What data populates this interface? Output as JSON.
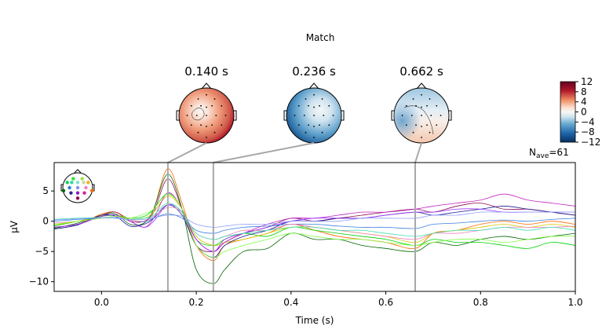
{
  "title": "Match",
  "n_ave_label": "N",
  "n_ave_sub": "ave",
  "n_ave_value": "=61",
  "topomaps": [
    {
      "time": 0.14,
      "label": "0.140 s",
      "pattern": "positive-broad"
    },
    {
      "time": 0.236,
      "label": "0.236 s",
      "pattern": "negative-broad"
    },
    {
      "time": 0.662,
      "label": "0.662 s",
      "pattern": "weak-mixed"
    }
  ],
  "colorbar": {
    "cmap": "RdBu_r",
    "range": [
      -12,
      12
    ],
    "ticks": [
      "12",
      "8",
      "4",
      "0",
      "−4",
      "−8",
      "−12"
    ],
    "tick_values": [
      12,
      8,
      4,
      0,
      -4,
      -8,
      -12
    ],
    "colors": {
      "max": "#67001f",
      "mid": "#f7f7f7",
      "min": "#053061"
    }
  },
  "chart_data": {
    "type": "line",
    "xlabel": "Time (s)",
    "ylabel": "µV",
    "xlim": [
      -0.1,
      1.0
    ],
    "ylim": [
      -11.6,
      9.7
    ],
    "xticks": [
      0.0,
      0.2,
      0.4,
      0.6,
      0.8,
      1.0
    ],
    "xtick_labels": [
      "0.0",
      "0.2",
      "0.4",
      "0.6",
      "0.8",
      "1.0"
    ],
    "yticks": [
      5,
      0,
      -5,
      -10
    ],
    "ytick_labels": [
      "5",
      "0",
      "−5",
      "−10"
    ],
    "grid": false,
    "legend": "sensor-map top-left",
    "highlight_times": [
      0.14,
      0.236,
      0.662
    ],
    "x": [
      -0.1,
      -0.05,
      0,
      0.03,
      0.06,
      0.09,
      0.11,
      0.14,
      0.17,
      0.2,
      0.236,
      0.26,
      0.3,
      0.35,
      0.4,
      0.45,
      0.5,
      0.55,
      0.6,
      0.662,
      0.7,
      0.75,
      0.8,
      0.85,
      0.9,
      0.95,
      1.0
    ],
    "series": [
      {
        "color": "#ff6a00",
        "values": [
          -1,
          -0.5,
          1.2,
          1.5,
          0.3,
          0,
          2,
          8.7,
          3,
          -4,
          -6.5,
          -4,
          -3,
          -2,
          -0.5,
          -1.5,
          -2.5,
          -3,
          -3.5,
          -4.5,
          -2,
          -1.5,
          -0.5,
          0,
          -0.5,
          0,
          -0.5
        ]
      },
      {
        "color": "#006400",
        "values": [
          -1.2,
          -0.3,
          1,
          1.2,
          -0.5,
          -0.3,
          2,
          7.8,
          2,
          -8,
          -10.3,
          -8,
          -5,
          -4.5,
          -2,
          -3,
          -3,
          -4,
          -4.5,
          -5,
          -3.5,
          -4,
          -3,
          -2.5,
          -3,
          -2.5,
          -2
        ]
      },
      {
        "color": "#8b0a50",
        "values": [
          -1,
          -0.5,
          1,
          1.5,
          0,
          0,
          1.5,
          7,
          2,
          -4,
          -5,
          -3.5,
          -2,
          -1,
          0.5,
          0,
          0.5,
          1,
          1.5,
          2,
          1.5,
          2.5,
          3,
          2,
          2,
          1.5,
          1
        ]
      },
      {
        "color": "#00d000",
        "values": [
          -0.8,
          0,
          0.8,
          1,
          0.5,
          0.8,
          2,
          4.6,
          2,
          -3,
          -4,
          -3,
          -2,
          -2.5,
          -1,
          -1.5,
          -2,
          -2.5,
          -3,
          -4,
          -3,
          -3.5,
          -3.5,
          -4,
          -4.5,
          -3.5,
          -4
        ]
      },
      {
        "color": "#d4c800",
        "values": [
          -0.6,
          0,
          0.9,
          1,
          0.3,
          0.5,
          1.5,
          4.2,
          2,
          -2.5,
          -4,
          -3.5,
          -3,
          -2,
          -1,
          -1,
          -1.5,
          -2,
          -2.5,
          -3.5,
          -2,
          -1.5,
          -1,
          -0.5,
          -1,
          -0.5,
          -1
        ]
      },
      {
        "color": "#c020c0",
        "values": [
          -1,
          -0.5,
          0.8,
          1,
          0,
          -1,
          0.5,
          4.7,
          2,
          -3,
          -5,
          -3.5,
          -2,
          -0.5,
          0.5,
          0.5,
          1,
          1.5,
          1.5,
          2,
          2.5,
          3,
          3.5,
          4.5,
          3.5,
          3,
          2.5
        ]
      },
      {
        "color": "#1a1a8c",
        "values": [
          -1.3,
          -0.6,
          1,
          0.8,
          -0.8,
          -0.5,
          0.5,
          2.7,
          1,
          -4,
          -6,
          -4,
          -2.5,
          -1.5,
          0,
          0,
          0.5,
          0.5,
          1,
          1.5,
          1,
          1.5,
          2,
          2.5,
          2,
          1.5,
          1
        ]
      },
      {
        "color": "#9b30ff",
        "values": [
          -1,
          -0.5,
          0.8,
          1,
          0,
          -1,
          0,
          2.7,
          1.5,
          -3,
          -5,
          -3,
          -2,
          -1,
          0,
          0.5,
          0.5,
          0.5,
          1,
          1.5,
          1.5,
          2,
          2,
          1.5,
          1.5,
          1.5,
          1.5
        ]
      },
      {
        "color": "#3a7fdf",
        "values": [
          0,
          0.3,
          0.5,
          0.6,
          0.2,
          -0.1,
          0.5,
          1.2,
          0.5,
          -1.5,
          -2,
          -1.5,
          -1,
          -0.8,
          -0.5,
          -0.5,
          -0.8,
          -1,
          -1,
          -1.2,
          -0.5,
          -0.3,
          0,
          0.2,
          0,
          0.3,
          0.5
        ]
      },
      {
        "color": "#f080c0",
        "values": [
          -0.3,
          0,
          0.5,
          0.8,
          0.2,
          0,
          0.8,
          2.3,
          1.5,
          -2,
          -3,
          -2.5,
          -1.5,
          -1.5,
          -0.5,
          -1,
          -1.5,
          -2,
          -2.5,
          -3,
          -2,
          -2,
          -1.5,
          -1,
          -1,
          -1,
          -0.8
        ]
      },
      {
        "color": "#40e0b0",
        "values": [
          0.3,
          0.5,
          0.6,
          0.5,
          0.3,
          0.5,
          1,
          3,
          1.5,
          -2,
          -3,
          -2.5,
          -2,
          -1.5,
          -1,
          -1,
          -1.5,
          -1.5,
          -2,
          -2.5,
          -2,
          -1.5,
          -1.5,
          -1,
          -1.5,
          -1,
          -1.5
        ]
      },
      {
        "color": "#80ff40",
        "values": [
          -0.5,
          0,
          0.5,
          0.8,
          0.5,
          1.2,
          2,
          4.5,
          2,
          -4,
          -6,
          -5,
          -4,
          -3,
          -2,
          -2.5,
          -3,
          -3,
          -3.5,
          -4,
          -3.5,
          -3,
          -3,
          -3.5,
          -3,
          -2.5,
          -2.5
        ]
      },
      {
        "color": "#8fa0ff",
        "values": [
          0.2,
          0.4,
          0.6,
          0.5,
          0.3,
          0.3,
          0.6,
          1.0,
          0.8,
          -0.5,
          -1,
          -0.8,
          -0.5,
          -0.5,
          0,
          0,
          0,
          0.5,
          0.5,
          0.5,
          1,
          1,
          1.5,
          1.5,
          1.5,
          1.5,
          1.5
        ]
      }
    ]
  }
}
